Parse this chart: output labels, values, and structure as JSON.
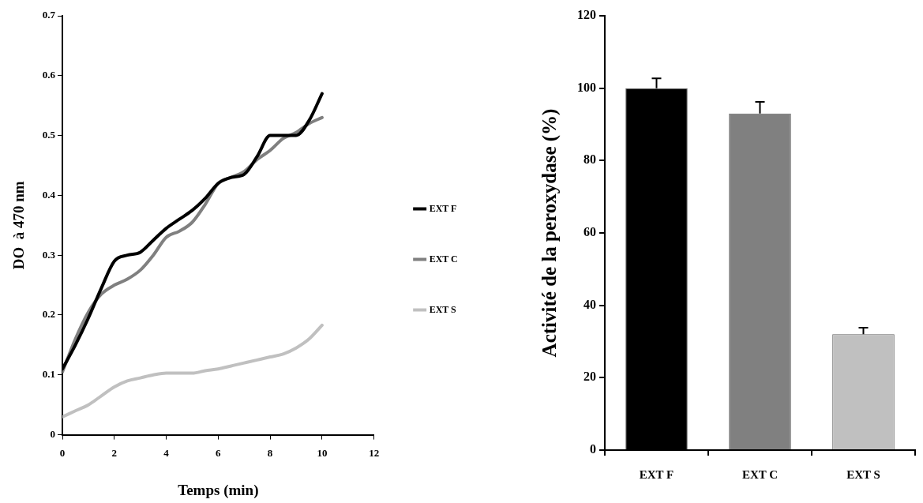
{
  "chart_data": [
    {
      "type": "line",
      "xlabel": "Temps (min)",
      "ylabel": "DO  à 470 nm",
      "x": [
        0,
        0.5,
        1,
        1.5,
        2,
        2.5,
        3,
        3.5,
        4,
        4.5,
        5,
        5.5,
        6,
        6.5,
        7,
        7.5,
        8,
        8.5,
        9,
        9.5,
        10
      ],
      "series": [
        {
          "name": "EXT F",
          "color": "#000000",
          "values": [
            0.11,
            0.15,
            0.195,
            0.245,
            0.29,
            0.3,
            0.305,
            0.325,
            0.345,
            0.36,
            0.375,
            0.395,
            0.42,
            0.43,
            0.435,
            0.465,
            0.5,
            0.5,
            0.5,
            0.525,
            0.57
          ]
        },
        {
          "name": "EXT C",
          "color": "#808080",
          "values": [
            0.105,
            0.16,
            0.205,
            0.235,
            0.25,
            0.26,
            0.275,
            0.3,
            0.33,
            0.34,
            0.355,
            0.385,
            0.42,
            0.43,
            0.44,
            0.46,
            0.475,
            0.495,
            0.505,
            0.52,
            0.53
          ]
        },
        {
          "name": "EXT S",
          "color": "#c0c0c0",
          "values": [
            0.03,
            0.04,
            0.05,
            0.065,
            0.08,
            0.09,
            0.095,
            0.1,
            0.103,
            0.103,
            0.103,
            0.107,
            0.11,
            0.115,
            0.12,
            0.125,
            0.13,
            0.135,
            0.145,
            0.16,
            0.183
          ]
        }
      ],
      "xlim": [
        0,
        12
      ],
      "xticks": [
        0,
        2,
        4,
        6,
        8,
        10,
        12
      ],
      "ylim": [
        0,
        0.7
      ],
      "yticks": [
        0,
        0.1,
        0.2,
        0.3,
        0.4,
        0.5,
        0.6,
        0.7
      ],
      "grid": false,
      "legend": "right",
      "marker": "none",
      "line_style": "solid"
    },
    {
      "type": "bar",
      "ylabel": "Activité de la peroxydase (%)",
      "categories": [
        "EXT F",
        "EXT C",
        "EXT S"
      ],
      "values": [
        100,
        93,
        32
      ],
      "colors": [
        "#000000",
        "#808080",
        "#c0c0c0"
      ],
      "errors": [
        [
          100,
          102.7
        ],
        [
          93,
          96.2
        ],
        [
          32,
          33.8
        ]
      ],
      "ylim": [
        0,
        120
      ],
      "yticks": [
        0,
        20,
        40,
        60,
        80,
        100,
        120
      ],
      "grid": false,
      "legend": false
    }
  ]
}
